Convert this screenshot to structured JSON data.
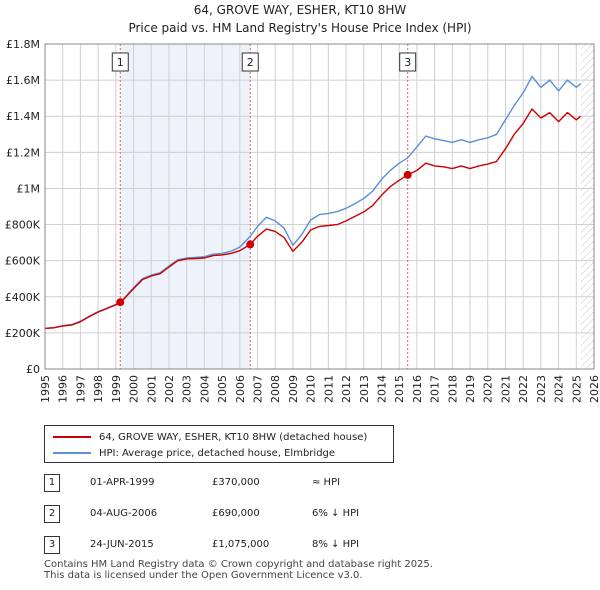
{
  "chart_data": {
    "type": "line",
    "title": "64, GROVE WAY, ESHER, KT10 8HW",
    "subtitle": "Price paid vs. HM Land Registry's House Price Index (HPI)",
    "x_ticks": [
      "1995",
      "1996",
      "1997",
      "1998",
      "1999",
      "2000",
      "2001",
      "2002",
      "2003",
      "2004",
      "2005",
      "2006",
      "2007",
      "2008",
      "2009",
      "2010",
      "2011",
      "2012",
      "2013",
      "2014",
      "2015",
      "2016",
      "2017",
      "2018",
      "2019",
      "2020",
      "2021",
      "2022",
      "2023",
      "2024",
      "2025",
      "2026"
    ],
    "y_ticks": [
      "£0",
      "£200K",
      "£400K",
      "£600K",
      "£800K",
      "£1M",
      "£1.2M",
      "£1.4M",
      "£1.6M",
      "£1.8M"
    ],
    "y_tick_values": [
      0,
      200000,
      400000,
      600000,
      800000,
      1000000,
      1200000,
      1400000,
      1600000,
      1800000
    ],
    "xlim": [
      1995,
      2026
    ],
    "ylim": [
      0,
      1800000
    ],
    "series": [
      {
        "name": "64, GROVE WAY, ESHER, KT10 8HW (detached house)",
        "color": "#cc0000",
        "points": [
          [
            1995.0,
            225000
          ],
          [
            1995.5,
            228000
          ],
          [
            1996.0,
            238000
          ],
          [
            1996.5,
            243000
          ],
          [
            1997.0,
            262000
          ],
          [
            1997.5,
            290000
          ],
          [
            1998.0,
            315000
          ],
          [
            1998.5,
            335000
          ],
          [
            1999.0,
            355000
          ],
          [
            1999.25,
            370000
          ],
          [
            1999.5,
            392000
          ],
          [
            2000.0,
            445000
          ],
          [
            2000.5,
            495000
          ],
          [
            2001.0,
            515000
          ],
          [
            2001.5,
            528000
          ],
          [
            2002.0,
            565000
          ],
          [
            2002.5,
            600000
          ],
          [
            2003.0,
            610000
          ],
          [
            2003.5,
            612000
          ],
          [
            2004.0,
            615000
          ],
          [
            2004.5,
            628000
          ],
          [
            2005.0,
            632000
          ],
          [
            2005.5,
            640000
          ],
          [
            2006.0,
            655000
          ],
          [
            2006.59,
            690000
          ],
          [
            2007.0,
            735000
          ],
          [
            2007.5,
            775000
          ],
          [
            2008.0,
            762000
          ],
          [
            2008.5,
            728000
          ],
          [
            2009.0,
            652000
          ],
          [
            2009.5,
            702000
          ],
          [
            2010.0,
            770000
          ],
          [
            2010.5,
            790000
          ],
          [
            2011.0,
            795000
          ],
          [
            2011.5,
            800000
          ],
          [
            2012.0,
            820000
          ],
          [
            2012.5,
            845000
          ],
          [
            2013.0,
            870000
          ],
          [
            2013.5,
            905000
          ],
          [
            2014.0,
            962000
          ],
          [
            2014.5,
            1010000
          ],
          [
            2015.0,
            1045000
          ],
          [
            2015.48,
            1075000
          ],
          [
            2016.0,
            1100000
          ],
          [
            2016.5,
            1140000
          ],
          [
            2017.0,
            1125000
          ],
          [
            2017.5,
            1120000
          ],
          [
            2018.0,
            1110000
          ],
          [
            2018.5,
            1125000
          ],
          [
            2019.0,
            1110000
          ],
          [
            2019.5,
            1125000
          ],
          [
            2020.0,
            1135000
          ],
          [
            2020.5,
            1150000
          ],
          [
            2021.0,
            1220000
          ],
          [
            2021.5,
            1300000
          ],
          [
            2022.0,
            1360000
          ],
          [
            2022.5,
            1440000
          ],
          [
            2023.0,
            1390000
          ],
          [
            2023.5,
            1420000
          ],
          [
            2024.0,
            1370000
          ],
          [
            2024.5,
            1420000
          ],
          [
            2025.0,
            1380000
          ],
          [
            2025.25,
            1400000
          ]
        ]
      },
      {
        "name": "HPI: Average price, detached house, Elmbridge",
        "color": "#5b8fd6",
        "points": [
          [
            1995.0,
            225000
          ],
          [
            1995.5,
            230000
          ],
          [
            1996.0,
            240000
          ],
          [
            1996.5,
            246000
          ],
          [
            1997.0,
            265000
          ],
          [
            1997.5,
            292000
          ],
          [
            1998.0,
            318000
          ],
          [
            1998.5,
            338000
          ],
          [
            1999.0,
            358000
          ],
          [
            1999.25,
            370000
          ],
          [
            1999.5,
            395000
          ],
          [
            2000.0,
            450000
          ],
          [
            2000.5,
            500000
          ],
          [
            2001.0,
            520000
          ],
          [
            2001.5,
            533000
          ],
          [
            2002.0,
            570000
          ],
          [
            2002.5,
            605000
          ],
          [
            2003.0,
            615000
          ],
          [
            2003.5,
            618000
          ],
          [
            2004.0,
            622000
          ],
          [
            2004.5,
            636000
          ],
          [
            2005.0,
            640000
          ],
          [
            2005.5,
            652000
          ],
          [
            2006.0,
            675000
          ],
          [
            2006.59,
            735000
          ],
          [
            2007.0,
            790000
          ],
          [
            2007.5,
            840000
          ],
          [
            2008.0,
            820000
          ],
          [
            2008.5,
            780000
          ],
          [
            2009.0,
            685000
          ],
          [
            2009.5,
            745000
          ],
          [
            2010.0,
            825000
          ],
          [
            2010.5,
            855000
          ],
          [
            2011.0,
            862000
          ],
          [
            2011.5,
            872000
          ],
          [
            2012.0,
            890000
          ],
          [
            2012.5,
            915000
          ],
          [
            2013.0,
            945000
          ],
          [
            2013.5,
            985000
          ],
          [
            2014.0,
            1050000
          ],
          [
            2014.5,
            1100000
          ],
          [
            2015.0,
            1140000
          ],
          [
            2015.48,
            1170000
          ],
          [
            2016.0,
            1230000
          ],
          [
            2016.5,
            1290000
          ],
          [
            2017.0,
            1275000
          ],
          [
            2017.5,
            1265000
          ],
          [
            2018.0,
            1255000
          ],
          [
            2018.5,
            1270000
          ],
          [
            2019.0,
            1255000
          ],
          [
            2019.5,
            1270000
          ],
          [
            2020.0,
            1280000
          ],
          [
            2020.5,
            1300000
          ],
          [
            2021.0,
            1380000
          ],
          [
            2021.5,
            1460000
          ],
          [
            2022.0,
            1530000
          ],
          [
            2022.5,
            1620000
          ],
          [
            2023.0,
            1560000
          ],
          [
            2023.5,
            1600000
          ],
          [
            2024.0,
            1540000
          ],
          [
            2024.5,
            1600000
          ],
          [
            2025.0,
            1560000
          ],
          [
            2025.25,
            1580000
          ]
        ]
      }
    ],
    "sales": [
      {
        "label": "1",
        "x": 1999.25,
        "y": 370000,
        "date": "01-APR-1999",
        "price": "£370,000",
        "hpi": "≈ HPI"
      },
      {
        "label": "2",
        "x": 2006.59,
        "y": 690000,
        "date": "04-AUG-2006",
        "price": "£690,000",
        "hpi": "6% ↓ HPI"
      },
      {
        "label": "3",
        "x": 2015.48,
        "y": 1075000,
        "date": "24-JUN-2015",
        "price": "£1,075,000",
        "hpi": "8% ↓ HPI"
      }
    ],
    "future_start": 2025.25,
    "shade_color": "#eef2fb",
    "grid_color": "#d0d0d0",
    "vline_color": "#e06060"
  },
  "footer": {
    "line1": "Contains HM Land Registry data © Crown copyright and database right 2025.",
    "line2": "This data is licensed under the Open Government Licence v3.0."
  }
}
